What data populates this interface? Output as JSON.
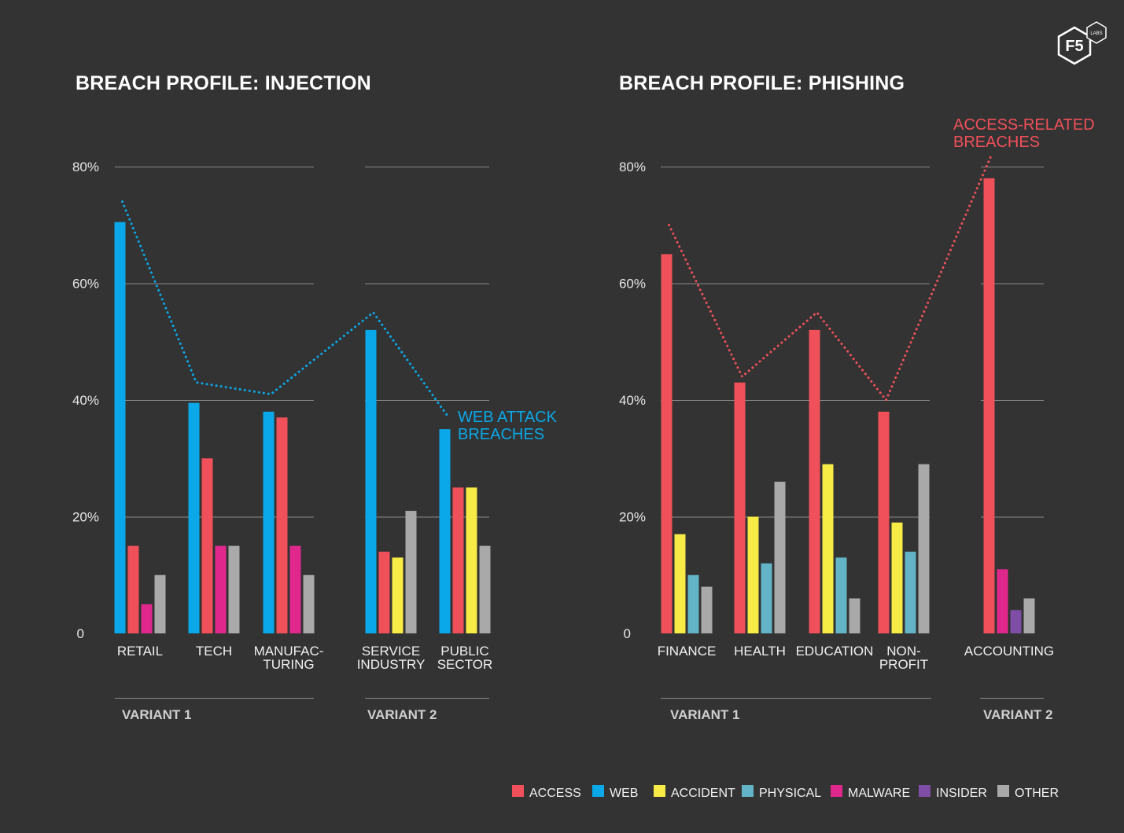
{
  "colors": {
    "ACCESS": "#f0505a",
    "WEB": "#0aa8e8",
    "ACCIDENT": "#f7eb45",
    "PHYSICAL": "#62b4c6",
    "MALWARE": "#e0288c",
    "INSIDER": "#7e4ea6",
    "OTHER": "#a9a9a9",
    "gridline": "#8a8a8a",
    "background": "#333333"
  },
  "logo": {
    "icon": "f5-labs-hexagon-logo",
    "text": "F5",
    "subtext": "LABS"
  },
  "legend": [
    "ACCESS",
    "WEB",
    "ACCIDENT",
    "PHYSICAL",
    "MALWARE",
    "INSIDER",
    "OTHER"
  ],
  "chart_data": [
    {
      "type": "bar",
      "title": "BREACH PROFILE: INJECTION",
      "ylim": [
        0,
        80
      ],
      "yticks": [
        0,
        20,
        40,
        60,
        80
      ],
      "ytick_labels": [
        "0",
        "20%",
        "40%",
        "60%",
        "80%"
      ],
      "grid": true,
      "trend_series": "WEB",
      "trend_values": [
        74,
        43,
        41,
        55,
        37
      ],
      "annotation": {
        "lines": [
          "WEB ATTACK",
          "BREACHES"
        ],
        "color_key": "WEB"
      },
      "groups": [
        {
          "label": "VARIANT 1",
          "categories": [
            {
              "label": [
                "RETAIL"
              ],
              "bars": [
                {
                  "series": "WEB",
                  "value": 70.5
                },
                {
                  "series": "ACCESS",
                  "value": 15
                },
                {
                  "series": "MALWARE",
                  "value": 5
                },
                {
                  "series": "OTHER",
                  "value": 10
                }
              ]
            },
            {
              "label": [
                "TECH"
              ],
              "bars": [
                {
                  "series": "WEB",
                  "value": 39.5
                },
                {
                  "series": "ACCESS",
                  "value": 30
                },
                {
                  "series": "MALWARE",
                  "value": 15
                },
                {
                  "series": "OTHER",
                  "value": 15
                }
              ]
            },
            {
              "label": [
                "MANUFAC-",
                "TURING"
              ],
              "bars": [
                {
                  "series": "WEB",
                  "value": 38
                },
                {
                  "series": "ACCESS",
                  "value": 37
                },
                {
                  "series": "MALWARE",
                  "value": 15
                },
                {
                  "series": "OTHER",
                  "value": 10
                }
              ]
            }
          ]
        },
        {
          "label": "VARIANT 2",
          "categories": [
            {
              "label": [
                "SERVICE",
                "INDUSTRY"
              ],
              "bars": [
                {
                  "series": "WEB",
                  "value": 52
                },
                {
                  "series": "ACCESS",
                  "value": 14
                },
                {
                  "series": "ACCIDENT",
                  "value": 13
                },
                {
                  "series": "OTHER",
                  "value": 21
                }
              ]
            },
            {
              "label": [
                "PUBLIC",
                "SECTOR"
              ],
              "bars": [
                {
                  "series": "WEB",
                  "value": 35
                },
                {
                  "series": "ACCESS",
                  "value": 25
                },
                {
                  "series": "ACCIDENT",
                  "value": 25
                },
                {
                  "series": "OTHER",
                  "value": 15
                }
              ]
            }
          ]
        }
      ]
    },
    {
      "type": "bar",
      "title": "BREACH PROFILE: PHISHING",
      "ylim": [
        0,
        80
      ],
      "yticks": [
        0,
        20,
        40,
        60,
        80
      ],
      "ytick_labels": [
        "0",
        "20%",
        "40%",
        "60%",
        "80%"
      ],
      "grid": true,
      "trend_series": "ACCESS",
      "trend_values": [
        70,
        44,
        55,
        40,
        82
      ],
      "annotation": {
        "lines": [
          "ACCESS-RELATED",
          "BREACHES"
        ],
        "color_key": "ACCESS"
      },
      "groups": [
        {
          "label": "VARIANT 1",
          "categories": [
            {
              "label": [
                "FINANCE"
              ],
              "bars": [
                {
                  "series": "ACCESS",
                  "value": 65
                },
                {
                  "series": "ACCIDENT",
                  "value": 17
                },
                {
                  "series": "PHYSICAL",
                  "value": 10
                },
                {
                  "series": "OTHER",
                  "value": 8
                }
              ]
            },
            {
              "label": [
                "HEALTH"
              ],
              "bars": [
                {
                  "series": "ACCESS",
                  "value": 43
                },
                {
                  "series": "ACCIDENT",
                  "value": 20
                },
                {
                  "series": "PHYSICAL",
                  "value": 12
                },
                {
                  "series": "OTHER",
                  "value": 26
                }
              ]
            },
            {
              "label": [
                "EDUCATION"
              ],
              "bars": [
                {
                  "series": "ACCESS",
                  "value": 52
                },
                {
                  "series": "ACCIDENT",
                  "value": 29
                },
                {
                  "series": "PHYSICAL",
                  "value": 13
                },
                {
                  "series": "OTHER",
                  "value": 6
                }
              ]
            },
            {
              "label": [
                "NON-",
                "PROFIT"
              ],
              "bars": [
                {
                  "series": "ACCESS",
                  "value": 38
                },
                {
                  "series": "ACCIDENT",
                  "value": 19
                },
                {
                  "series": "PHYSICAL",
                  "value": 14
                },
                {
                  "series": "OTHER",
                  "value": 29
                }
              ]
            }
          ]
        },
        {
          "label": "VARIANT 2",
          "categories": [
            {
              "label": [
                "ACCOUNTING"
              ],
              "bars": [
                {
                  "series": "ACCESS",
                  "value": 78
                },
                {
                  "series": "MALWARE",
                  "value": 11
                },
                {
                  "series": "INSIDER",
                  "value": 4
                },
                {
                  "series": "OTHER",
                  "value": 6
                }
              ]
            }
          ]
        }
      ]
    }
  ]
}
